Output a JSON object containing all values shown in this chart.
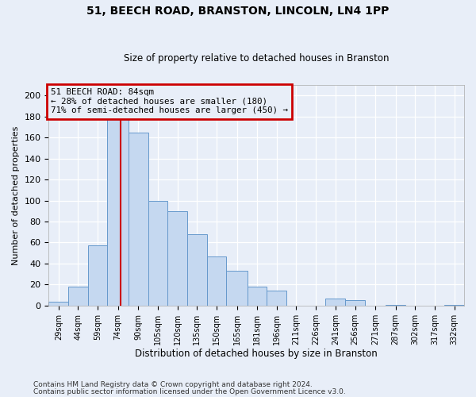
{
  "title": "51, BEECH ROAD, BRANSTON, LINCOLN, LN4 1PP",
  "subtitle": "Size of property relative to detached houses in Branston",
  "xlabel": "Distribution of detached houses by size in Branston",
  "ylabel": "Number of detached properties",
  "footer1": "Contains HM Land Registry data © Crown copyright and database right 2024.",
  "footer2": "Contains public sector information licensed under the Open Government Licence v3.0.",
  "annotation_line1": "51 BEECH ROAD: 84sqm",
  "annotation_line2": "← 28% of detached houses are smaller (180)",
  "annotation_line3": "71% of semi-detached houses are larger (450) →",
  "subject_value": 84,
  "bar_lefts": [
    29,
    44,
    59,
    74,
    90,
    105,
    120,
    135,
    150,
    165,
    181,
    196,
    211,
    226,
    241,
    256,
    271,
    287,
    302,
    317,
    332
  ],
  "bar_labels": [
    "29sqm",
    "44sqm",
    "59sqm",
    "74sqm",
    "90sqm",
    "105sqm",
    "120sqm",
    "135sqm",
    "150sqm",
    "165sqm",
    "181sqm",
    "196sqm",
    "211sqm",
    "226sqm",
    "241sqm",
    "256sqm",
    "271sqm",
    "287sqm",
    "302sqm",
    "317sqm",
    "332sqm"
  ],
  "bar_heights": [
    4,
    18,
    57,
    180,
    165,
    100,
    90,
    68,
    47,
    33,
    18,
    14,
    0,
    0,
    7,
    5,
    0,
    1,
    0,
    0,
    1
  ],
  "bar_color": "#c5d8f0",
  "bar_edge_color": "#6699cc",
  "vline_x": 84,
  "vline_color": "#cc0000",
  "box_color": "#cc0000",
  "bg_color": "#e8eef8",
  "plot_bg_color": "#e8eef8",
  "ylim": [
    0,
    210
  ],
  "yticks": [
    0,
    20,
    40,
    60,
    80,
    100,
    120,
    140,
    160,
    180,
    200
  ],
  "grid_color": "#ffffff"
}
